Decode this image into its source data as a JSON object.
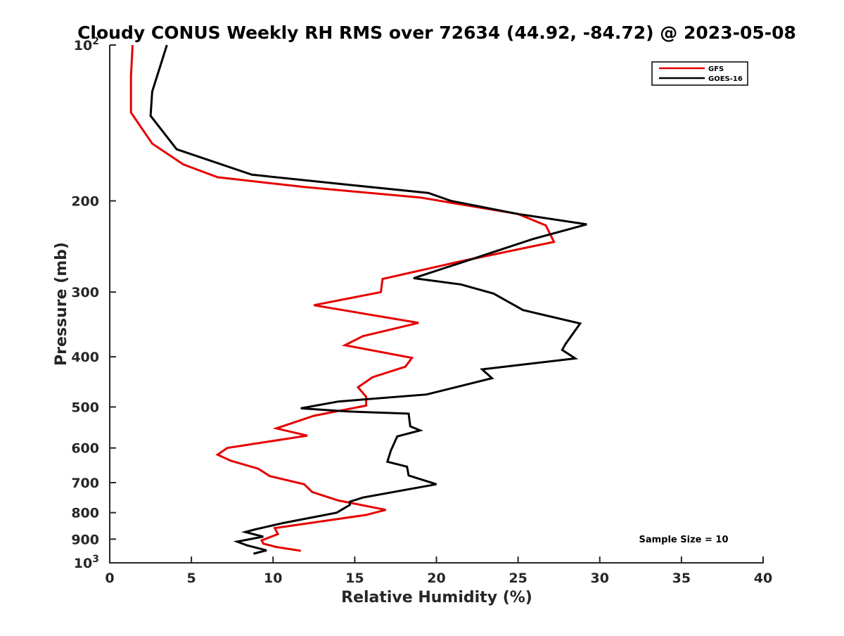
{
  "chart_data": {
    "type": "line",
    "title": "Cloudy CONUS Weekly RH RMS over 72634 (44.92, -84.72) @ 2023-05-08",
    "xlabel": "Relative Humidity (%)",
    "ylabel": "Pressure (mb)",
    "xlim": [
      0,
      40
    ],
    "ylim": [
      100,
      1000
    ],
    "y_scale": "log",
    "y_reversed": true,
    "grid": false,
    "legend_position": "top-right",
    "x_ticks": [
      "0",
      "5",
      "10",
      "15",
      "20",
      "25",
      "30",
      "35",
      "40"
    ],
    "y_ticks": [
      {
        "value": 100,
        "base": "10",
        "exp": "2"
      },
      {
        "value": 200,
        "label": "200"
      },
      {
        "value": 300,
        "label": "300"
      },
      {
        "value": 400,
        "label": "400"
      },
      {
        "value": 500,
        "label": "500"
      },
      {
        "value": 600,
        "label": "600"
      },
      {
        "value": 700,
        "label": "700"
      },
      {
        "value": 800,
        "label": "800"
      },
      {
        "value": 900,
        "label": "900"
      },
      {
        "value": 1000,
        "base": "10",
        "exp": "3"
      }
    ],
    "annotation": "Sample Size = 10",
    "series": [
      {
        "name": "GFS",
        "color": "#e60000",
        "points": [
          [
            1.4,
            100
          ],
          [
            1.3,
            115
          ],
          [
            1.3,
            135
          ],
          [
            2.6,
            155
          ],
          [
            4.5,
            170
          ],
          [
            6.6,
            180
          ],
          [
            11.9,
            188
          ],
          [
            19.0,
            197
          ],
          [
            25.0,
            212
          ],
          [
            26.7,
            223
          ],
          [
            27.2,
            240
          ],
          [
            21.4,
            262
          ],
          [
            16.7,
            283
          ],
          [
            16.6,
            300
          ],
          [
            12.5,
            318
          ],
          [
            18.9,
            344
          ],
          [
            15.5,
            365
          ],
          [
            14.4,
            380
          ],
          [
            18.5,
            402
          ],
          [
            18.1,
            418
          ],
          [
            16.1,
            438
          ],
          [
            15.2,
            458
          ],
          [
            15.7,
            478
          ],
          [
            15.7,
            497
          ],
          [
            12.5,
            520
          ],
          [
            10.2,
            550
          ],
          [
            12.1,
            568
          ],
          [
            7.2,
            600
          ],
          [
            6.6,
            618
          ],
          [
            7.4,
            635
          ],
          [
            9.1,
            658
          ],
          [
            9.8,
            680
          ],
          [
            11.9,
            705
          ],
          [
            12.4,
            730
          ],
          [
            14.0,
            758
          ],
          [
            16.9,
            790
          ],
          [
            15.7,
            808
          ],
          [
            10.1,
            857
          ],
          [
            10.3,
            880
          ],
          [
            9.3,
            905
          ],
          [
            9.4,
            918
          ],
          [
            10.2,
            932
          ],
          [
            11.7,
            948
          ]
        ]
      },
      {
        "name": "GOES-16",
        "color": "#000000",
        "points": [
          [
            3.5,
            100
          ],
          [
            2.6,
            123
          ],
          [
            2.5,
            137
          ],
          [
            4.1,
            159
          ],
          [
            8.7,
            178
          ],
          [
            14.5,
            186
          ],
          [
            19.5,
            193
          ],
          [
            20.9,
            200
          ],
          [
            25.0,
            212
          ],
          [
            29.2,
            222
          ],
          [
            25.9,
            237
          ],
          [
            21.7,
            262
          ],
          [
            18.6,
            282
          ],
          [
            21.5,
            290
          ],
          [
            23.5,
            302
          ],
          [
            25.3,
            325
          ],
          [
            28.8,
            345
          ],
          [
            27.9,
            378
          ],
          [
            27.7,
            388
          ],
          [
            28.5,
            403
          ],
          [
            22.8,
            423
          ],
          [
            23.4,
            440
          ],
          [
            19.4,
            473
          ],
          [
            14.0,
            488
          ],
          [
            11.7,
            503
          ],
          [
            14.5,
            510
          ],
          [
            18.3,
            515
          ],
          [
            18.4,
            545
          ],
          [
            19.0,
            555
          ],
          [
            17.6,
            570
          ],
          [
            17.2,
            608
          ],
          [
            17.0,
            638
          ],
          [
            18.2,
            652
          ],
          [
            18.3,
            678
          ],
          [
            20.0,
            705
          ],
          [
            15.5,
            748
          ],
          [
            14.7,
            762
          ],
          [
            14.7,
            773
          ],
          [
            13.9,
            800
          ],
          [
            10.6,
            838
          ],
          [
            8.9,
            862
          ],
          [
            8.3,
            872
          ],
          [
            9.4,
            890
          ],
          [
            7.8,
            910
          ],
          [
            8.4,
            925
          ],
          [
            9.6,
            946
          ],
          [
            8.8,
            960
          ]
        ]
      }
    ]
  }
}
